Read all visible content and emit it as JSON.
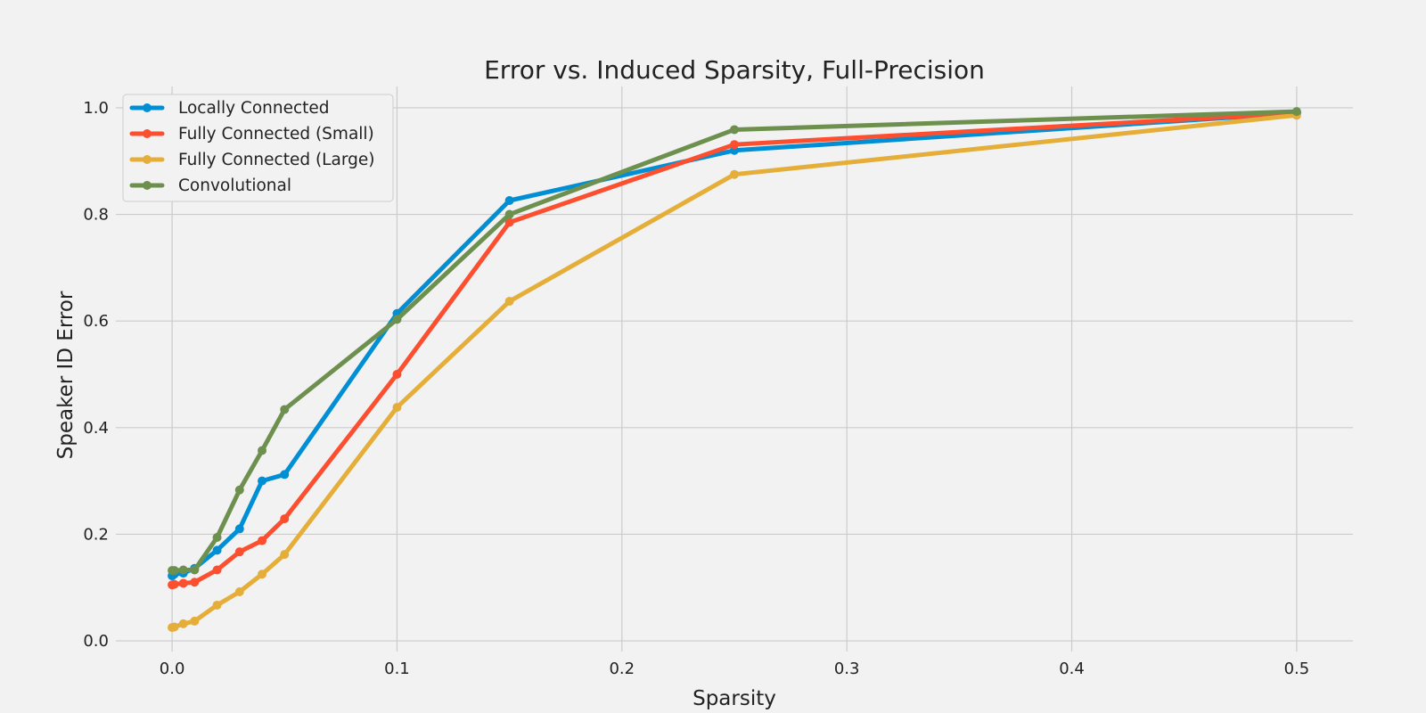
{
  "chart_data": {
    "type": "line",
    "title": "Error vs. Induced Sparsity, Full-Precision",
    "xlabel": "Sparsity",
    "ylabel": "Speaker ID Error",
    "xlim": [
      -0.025,
      0.525
    ],
    "ylim": [
      -0.02,
      1.04
    ],
    "xticks": [
      0.0,
      0.1,
      0.2,
      0.3,
      0.4,
      0.5
    ],
    "xtick_labels": [
      "0.0",
      "0.1",
      "0.2",
      "0.3",
      "0.4",
      "0.5"
    ],
    "yticks": [
      0.0,
      0.2,
      0.4,
      0.6,
      0.8,
      1.0
    ],
    "ytick_labels": [
      "0.0",
      "0.2",
      "0.4",
      "0.6",
      "0.8",
      "1.0"
    ],
    "grid": true,
    "legend_position": "top-left",
    "x": [
      0.0,
      0.001,
      0.005,
      0.01,
      0.02,
      0.03,
      0.04,
      0.05,
      0.1,
      0.15,
      0.25,
      0.5
    ],
    "series": [
      {
        "name": "Locally Connected",
        "color": "#008fd5",
        "values": [
          0.122,
          0.125,
          0.127,
          0.136,
          0.17,
          0.21,
          0.3,
          0.312,
          0.614,
          0.826,
          0.92,
          0.99
        ]
      },
      {
        "name": "Fully Connected (Small)",
        "color": "#fc4f30",
        "values": [
          0.105,
          0.106,
          0.108,
          0.11,
          0.133,
          0.167,
          0.188,
          0.229,
          0.5,
          0.785,
          0.931,
          0.99
        ]
      },
      {
        "name": "Fully Connected (Large)",
        "color": "#e5ae38",
        "values": [
          0.025,
          0.026,
          0.032,
          0.037,
          0.067,
          0.092,
          0.125,
          0.162,
          0.438,
          0.637,
          0.875,
          0.986
        ]
      },
      {
        "name": "Convolutional",
        "color": "#6d904f",
        "values": [
          0.132,
          0.132,
          0.133,
          0.133,
          0.194,
          0.283,
          0.357,
          0.434,
          0.603,
          0.8,
          0.959,
          0.993
        ]
      }
    ]
  }
}
